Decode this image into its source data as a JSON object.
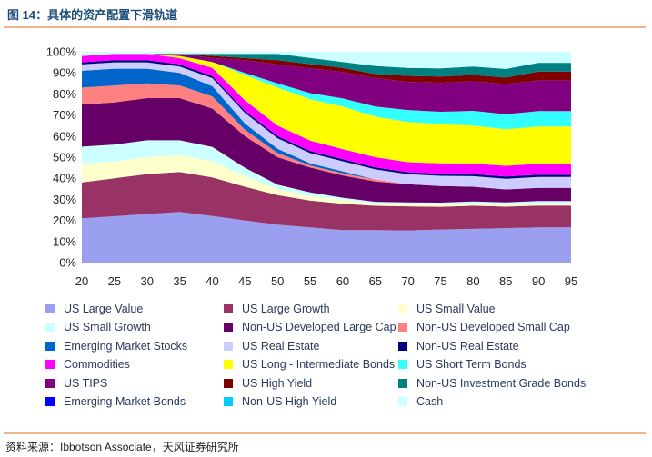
{
  "figure": {
    "title": "图 14：具体的资产配置下滑轨道",
    "source": "资料来源：Ibbotson Associate，天风证券研究所"
  },
  "chart_data": {
    "type": "area",
    "stacked": true,
    "x": [
      20,
      25,
      30,
      35,
      40,
      45,
      50,
      55,
      60,
      65,
      70,
      75,
      80,
      85,
      90,
      95
    ],
    "x_ticks": [
      20,
      25,
      30,
      35,
      40,
      45,
      50,
      55,
      60,
      65,
      70,
      75,
      80,
      85,
      90,
      95
    ],
    "y_ticks": [
      "0%",
      "10%",
      "20%",
      "30%",
      "40%",
      "50%",
      "60%",
      "70%",
      "80%",
      "90%",
      "100%"
    ],
    "ylim": [
      0,
      100
    ],
    "legend_position": "bottom",
    "series": [
      {
        "name": "US Large Value",
        "color": "#9b9ff0",
        "values": [
          21,
          22,
          23,
          24,
          23,
          20,
          18,
          17,
          16,
          16,
          16,
          16,
          16,
          16,
          16,
          16
        ]
      },
      {
        "name": "US Large Growth",
        "color": "#993366",
        "values": [
          17,
          18,
          19,
          19,
          19,
          16,
          14,
          13,
          13,
          12,
          12,
          11,
          11,
          10,
          10,
          10
        ]
      },
      {
        "name": "US Small Value",
        "color": "#ffffcc",
        "values": [
          9,
          8,
          8,
          8,
          8,
          5,
          3,
          2,
          2,
          1,
          1,
          1,
          1,
          1,
          1,
          1
        ]
      },
      {
        "name": "US Small Growth",
        "color": "#ccffff",
        "values": [
          8,
          8,
          8,
          7,
          7,
          4,
          2,
          2,
          1,
          1,
          1,
          1,
          1,
          1,
          1,
          1
        ]
      },
      {
        "name": "Non-US Developed Large Cap",
        "color": "#660066",
        "values": [
          20,
          20,
          20,
          20,
          19,
          15,
          13,
          12,
          11,
          10,
          9,
          8,
          7,
          6,
          6,
          6
        ]
      },
      {
        "name": "Non-US Developed Small Cap",
        "color": "#ff8080",
        "values": [
          8,
          8,
          7,
          6,
          6,
          3,
          2,
          1,
          1,
          1,
          0,
          0,
          0,
          0,
          0,
          0
        ]
      },
      {
        "name": "Emerging Market Stocks",
        "color": "#0066cc",
        "values": [
          8,
          8,
          7,
          6,
          5,
          3,
          2,
          1,
          1,
          0,
          0,
          0,
          0,
          0,
          0,
          0
        ]
      },
      {
        "name": "US Real Estate",
        "color": "#ccccff",
        "values": [
          3,
          3,
          3,
          3,
          4,
          5,
          5,
          5,
          5,
          5,
          5,
          5,
          5,
          5,
          5,
          5
        ]
      },
      {
        "name": "Non-US Real Estate",
        "color": "#000080",
        "values": [
          1,
          1,
          1,
          1,
          1,
          1,
          1,
          1,
          1,
          1,
          1,
          1,
          1,
          1,
          1,
          1
        ]
      },
      {
        "name": "Commodities",
        "color": "#ff00ff",
        "values": [
          3,
          3,
          3,
          3,
          4,
          5,
          5,
          5,
          5,
          5,
          5,
          5,
          5,
          5,
          5,
          5
        ]
      },
      {
        "name": "US Long - Intermediate Bonds",
        "color": "#ffff00",
        "values": [
          0,
          0,
          0,
          1,
          3,
          12,
          18,
          20,
          21,
          20,
          20,
          19,
          18,
          17,
          17,
          17
        ]
      },
      {
        "name": "US Short Term Bonds",
        "color": "#33ffff",
        "values": [
          0,
          0,
          0,
          0,
          0,
          1,
          2,
          3,
          4,
          5,
          6,
          6,
          7,
          7,
          7,
          7
        ]
      },
      {
        "name": "US TIPS",
        "color": "#800080",
        "values": [
          0,
          0,
          0,
          1,
          2,
          6,
          9,
          12,
          13,
          14,
          14,
          14,
          14,
          14,
          14,
          14
        ]
      },
      {
        "name": "US High Yield",
        "color": "#800000",
        "values": [
          0,
          0,
          0,
          0,
          1,
          1,
          2,
          2,
          2,
          2,
          3,
          3,
          3,
          3,
          4,
          4
        ]
      },
      {
        "name": "Non-US Investment Grade Bonds",
        "color": "#008080",
        "values": [
          0,
          0,
          0,
          0,
          1,
          2,
          3,
          3,
          3,
          4,
          4,
          4,
          4,
          4,
          4,
          4
        ]
      },
      {
        "name": "Emerging Market Bonds",
        "color": "#0000ff",
        "values": [
          0,
          0,
          0,
          0,
          0,
          0,
          0,
          0,
          0,
          0,
          0,
          0,
          0,
          0,
          0,
          0
        ]
      },
      {
        "name": "Non-US High Yield",
        "color": "#00ccff",
        "values": [
          0,
          0,
          0,
          0,
          0,
          0,
          0,
          0,
          0,
          0,
          0,
          0,
          0,
          0,
          0,
          0
        ]
      },
      {
        "name": "Cash",
        "color": "#ccffff",
        "values": [
          2,
          1,
          1,
          1,
          1,
          1,
          1,
          3,
          5,
          7,
          8,
          8,
          7,
          8,
          5,
          5
        ]
      }
    ]
  }
}
